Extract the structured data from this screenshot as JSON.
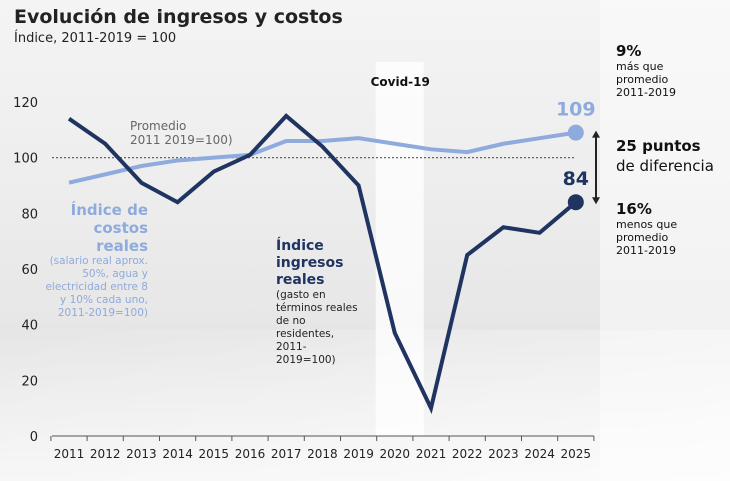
{
  "title": "Evolución de ingresos y costos",
  "subtitle": "Índice, 2011-2019 = 100",
  "chart_data": {
    "type": "line",
    "x": [
      2011,
      2012,
      2013,
      2014,
      2015,
      2016,
      2017,
      2018,
      2019,
      2020,
      2021,
      2022,
      2023,
      2024,
      2025
    ],
    "ylim": [
      0,
      120
    ],
    "yticks": [
      0,
      20,
      40,
      60,
      80,
      100,
      120
    ],
    "series": [
      {
        "name": "Índice ingresos reales",
        "color": "#1f3461",
        "values": [
          114,
          105,
          91,
          84,
          95,
          101,
          115,
          104,
          90,
          37,
          10,
          65,
          75,
          73,
          84
        ]
      },
      {
        "name": "Índice de costos reales",
        "color": "#8faadc",
        "values": [
          91,
          94,
          97,
          99,
          100,
          101,
          106,
          106,
          107,
          105,
          103,
          102,
          105,
          107,
          109
        ]
      }
    ],
    "reference_line": {
      "value": 100,
      "label_line1": "Promedio",
      "label_line2": "2011 2019=100)"
    },
    "shaded_band": {
      "from": 2019.5,
      "to": 2020.8,
      "label": "Covid-19"
    },
    "end_labels": {
      "costs": "109",
      "income": "84"
    }
  },
  "annotations": {
    "costs_title": "Índice de costos reales",
    "costs_desc": "(salario real aprox. 50%, agua y electricidad entre 8 y 10% cada uno, 2011-2019=100)",
    "income_title": "Índice ingresos reales",
    "income_desc": "(gasto en términos reales de no residentes, 2011-2019=100)",
    "top_pct": "9%",
    "top_desc": "más que promedio 2011-2019",
    "gap_bold": "25 puntos",
    "gap_rest": "de diferencia",
    "bottom_pct": "16%",
    "bottom_desc": "menos que promedio 2011-2019"
  }
}
